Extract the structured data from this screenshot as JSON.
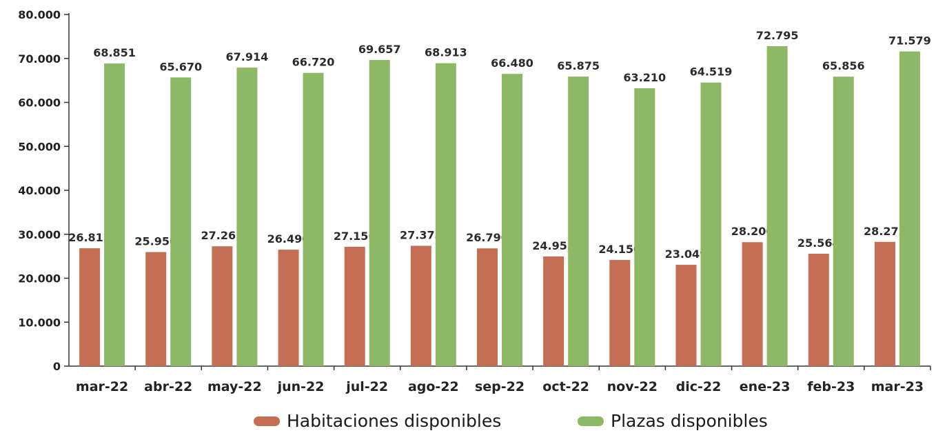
{
  "chart_data": {
    "type": "bar",
    "categories": [
      "mar-22",
      "abr-22",
      "may-22",
      "jun-22",
      "jul-22",
      "ago-22",
      "sep-22",
      "oct-22",
      "nov-22",
      "dic-22",
      "ene-23",
      "feb-23",
      "mar-23"
    ],
    "series": [
      {
        "name": "Habitaciones disponibles",
        "color": "#c46f54",
        "values": [
          26815,
          25950,
          27261,
          26490,
          27156,
          27373,
          26790,
          24955,
          24150,
          23049,
          28200,
          25564,
          28272
        ],
        "labels": [
          "26.815",
          "25.950",
          "27.261",
          "26.490",
          "27.156",
          "27.373",
          "26.790",
          "24.955",
          "24.150",
          "23.049",
          "28.200",
          "25.564",
          "28.272"
        ]
      },
      {
        "name": "Plazas disponibles",
        "color": "#8db865",
        "values": [
          68851,
          65670,
          67914,
          66720,
          69657,
          68913,
          66480,
          65875,
          63210,
          64519,
          72795,
          65856,
          71579
        ],
        "labels": [
          "68.851",
          "65.670",
          "67.914",
          "66.720",
          "69.657",
          "68.913",
          "66.480",
          "65.875",
          "63.210",
          "64.519",
          "72.795",
          "65.856",
          "71.579"
        ]
      }
    ],
    "ylim": [
      0,
      80000
    ],
    "yticks": [
      0,
      10000,
      20000,
      30000,
      40000,
      50000,
      60000,
      70000,
      80000
    ],
    "ytick_labels": [
      "0",
      "10.000",
      "20.000",
      "30.000",
      "40.000",
      "50.000",
      "60.000",
      "70.000",
      "80.000"
    ],
    "grid": false,
    "legend_position": "bottom-center",
    "xlabel": "",
    "ylabel": ""
  },
  "legend": {
    "item1": "Habitaciones disponibles",
    "item2": "Plazas disponibles"
  }
}
